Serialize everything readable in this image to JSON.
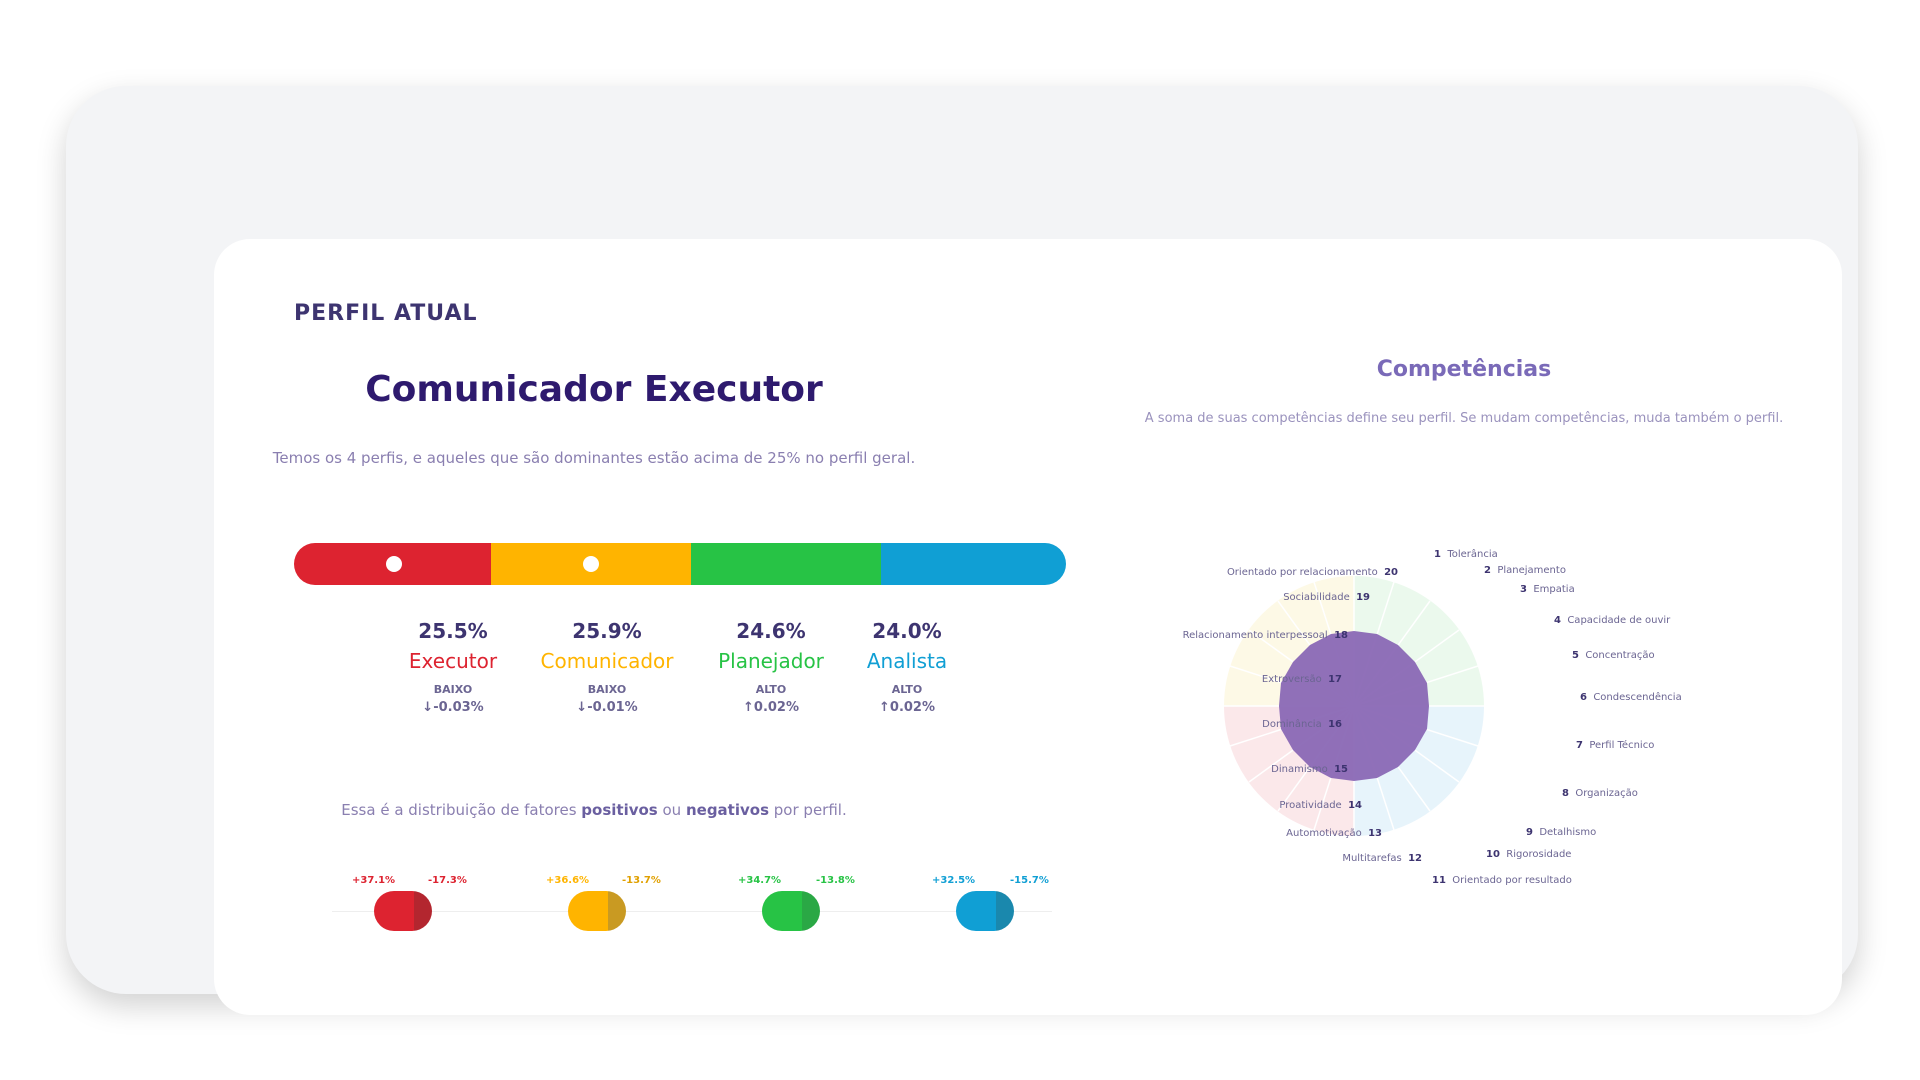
{
  "section_label": "PERFIL ATUAL",
  "profile_title": "Comunicador Executor",
  "subtitle": "Temos os 4 perfis, e aqueles que são dominantes estão acima de 25% no perfil geral.",
  "profiles": [
    {
      "pct": "25.5%",
      "name": "Executor",
      "level": "BAIXO",
      "trend": "↓-0.03%",
      "color": "#dd2330",
      "positive": "+37.1%",
      "negative": "-17.3%"
    },
    {
      "pct": "25.9%",
      "name": "Comunicador",
      "level": "BAIXO",
      "trend": "↓-0.01%",
      "color": "#ffb400",
      "positive": "+36.6%",
      "negative": "-13.7%"
    },
    {
      "pct": "24.6%",
      "name": "Planejador",
      "level": "ALTO",
      "trend": "↑0.02%",
      "color": "#27c345",
      "positive": "+34.7%",
      "negative": "-13.8%"
    },
    {
      "pct": "24.0%",
      "name": "Analista",
      "level": "ALTO",
      "trend": "↑0.02%",
      "color": "#109fd4",
      "positive": "+32.5%",
      "negative": "-15.7%"
    }
  ],
  "distribution": {
    "prefix": "Essa é a distribuição de fatores ",
    "positive": "positivos",
    "middle": " ou ",
    "negative": "negativos",
    "suffix": " por perfil."
  },
  "competencias": {
    "title": "Competências",
    "subtitle": "A soma de suas competências define seu perfil. Se mudam competências, muda também o perfil.",
    "items": [
      {
        "n": "1",
        "label": "Tolerância"
      },
      {
        "n": "2",
        "label": "Planejamento"
      },
      {
        "n": "3",
        "label": "Empatia"
      },
      {
        "n": "4",
        "label": "Capacidade de ouvir"
      },
      {
        "n": "5",
        "label": "Concentração"
      },
      {
        "n": "6",
        "label": "Condescendência"
      },
      {
        "n": "7",
        "label": "Perfil Técnico"
      },
      {
        "n": "8",
        "label": "Organização"
      },
      {
        "n": "9",
        "label": "Detalhismo"
      },
      {
        "n": "10",
        "label": "Rigorosidade"
      },
      {
        "n": "11",
        "label": "Orientado por resultado"
      },
      {
        "n": "12",
        "label": "Multitarefas"
      },
      {
        "n": "13",
        "label": "Automotivação"
      },
      {
        "n": "14",
        "label": "Proatividade"
      },
      {
        "n": "15",
        "label": "Dinamismo"
      },
      {
        "n": "16",
        "label": "Dominância"
      },
      {
        "n": "17",
        "label": "Extroversão"
      },
      {
        "n": "18",
        "label": "Relacionamento interpessoal"
      },
      {
        "n": "19",
        "label": "Sociabilidade"
      },
      {
        "n": "20",
        "label": "Orientado por relacionamento"
      }
    ]
  }
}
